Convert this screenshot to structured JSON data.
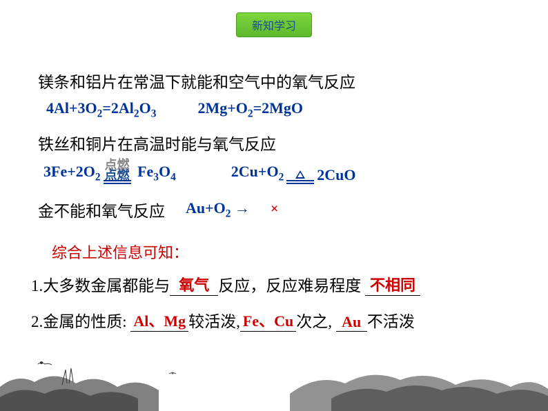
{
  "badge": {
    "label": "新知学习"
  },
  "section1": {
    "intro": "镁条和铝片在常温下就能和空气中的氧气反应",
    "eq1_html": "4Al+3O<sub>2</sub>=2Al<sub>2</sub>O<sub>3</sub>",
    "eq2_html": "2Mg+O<sub>2</sub>=2MgO"
  },
  "section2": {
    "intro": "铁丝和铜片在高温时能与氧气反应",
    "eq1_left_html": "3Fe+2O<sub>2</sub>",
    "eq1_cond": "点燃",
    "eq1_right_html": "Fe<sub>3</sub>O<sub>4</sub>",
    "eq2_left_html": "2Cu+O<sub>2</sub>",
    "eq2_right_html": "2CuO"
  },
  "section3": {
    "intro": "金不能和氧气反应",
    "eq_html": "Au+O<sub>2</sub> →",
    "mark": "×"
  },
  "conclusion": {
    "lead": "综合上述信息可知：",
    "line1_prefix": "1.大多数金属都能与",
    "line1_blank1": "氧气",
    "line1_mid": "反应，反应难易程度",
    "line1_blank2": "不相同",
    "line2_prefix": "2.金属的性质:",
    "line2_b1": "Al、Mg",
    "line2_t1": "较活泼,",
    "line2_b2": "Fe、Cu",
    "line2_t2": "次之,",
    "line2_b3": "Au",
    "line2_t3": "不活泼"
  },
  "colors": {
    "badge_bg_top": "#7fd63f",
    "badge_bg_bottom": "#5cb82c",
    "badge_border": "#4a9e1f",
    "blue": "#003399",
    "red": "#cc0000",
    "black": "#000000"
  }
}
